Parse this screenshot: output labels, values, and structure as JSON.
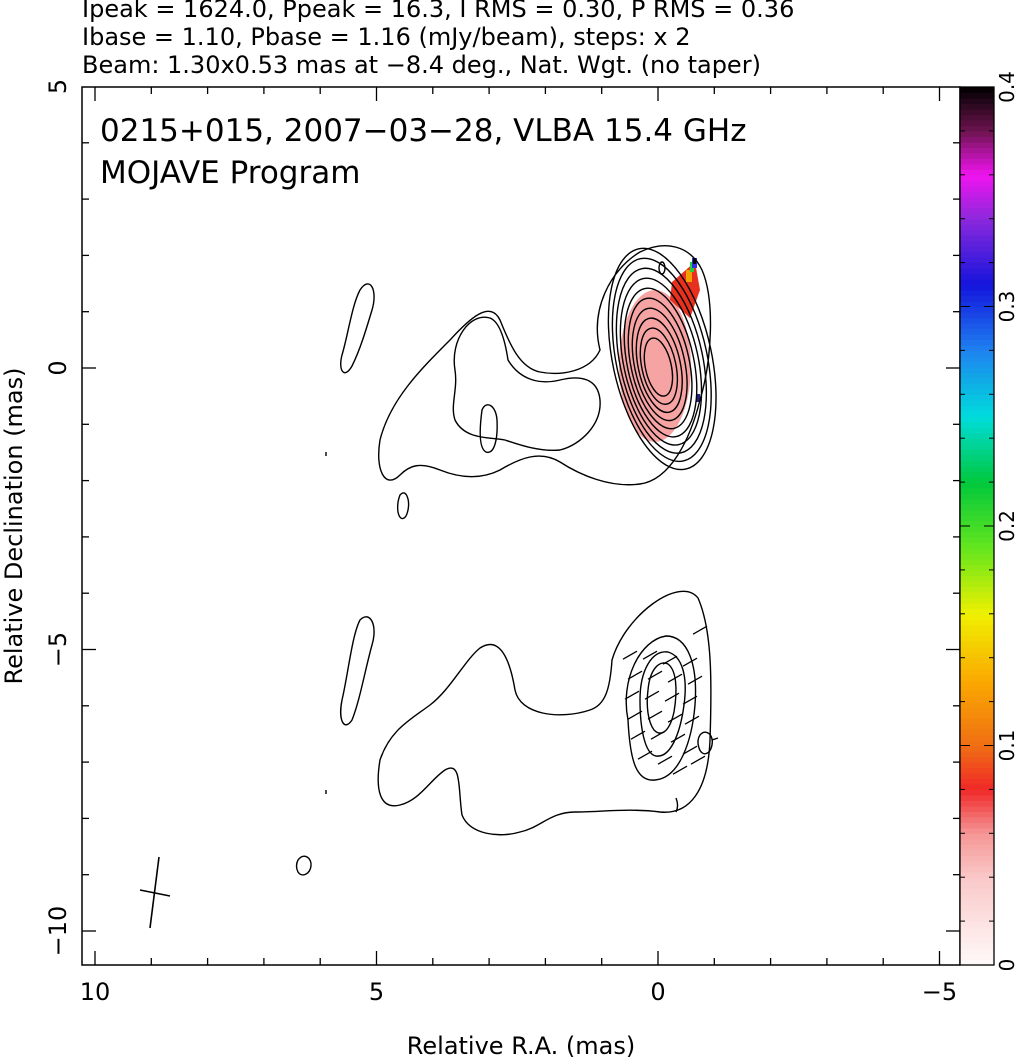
{
  "header": {
    "line1": "Ipeak = 1624.0, Ppeak = 16.3, I RMS = 0.30, P RMS = 0.36",
    "line2": "Ibase = 1.10, Pbase = 1.16 (mJy/beam), steps: x 2",
    "line3": "Beam: 1.30x0.53 mas at −8.4 deg., Nat. Wgt. (no taper)"
  },
  "chart_data": {
    "type": "heatmap",
    "title": "0215+015, 2007−03−28, VLBA 15.4 GHz",
    "subtitle": "MOJAVE Program",
    "xlabel": "Relative R.A. (mas)",
    "ylabel": "Relative Declination (mas)",
    "xlim": [
      10.2,
      -5.3
    ],
    "ylim": [
      -10.6,
      5
    ],
    "x_ticks": [
      {
        "value": 10,
        "label": "10"
      },
      {
        "value": 5,
        "label": "5"
      },
      {
        "value": 0,
        "label": "0"
      },
      {
        "value": -5,
        "label": "−5"
      }
    ],
    "y_ticks": [
      {
        "value": 5,
        "label": "5"
      },
      {
        "value": 0,
        "label": "0"
      },
      {
        "value": -5,
        "label": "−5"
      },
      {
        "value": -10,
        "label": "−10"
      }
    ],
    "colorbar": {
      "range": [
        0,
        0.4
      ],
      "ticks": [
        {
          "value": 0,
          "label": "0"
        },
        {
          "value": 0.1,
          "label": "0.1"
        },
        {
          "value": 0.2,
          "label": "0.2"
        },
        {
          "value": 0.3,
          "label": "0.3"
        },
        {
          "value": 0.4,
          "label": "0.4"
        }
      ]
    },
    "total_intensity_core": {
      "center": [
        0,
        0
      ],
      "semi_axes_mas": [
        0.88,
        2.0
      ],
      "contour_levels": 10
    },
    "polarized_core_offset_dec": -5.9,
    "beam": {
      "major_mas": 1.3,
      "minor_mas": 0.53,
      "pa_deg": -8.4,
      "center": [
        9.0,
        -9.3
      ]
    }
  },
  "colors": {
    "fractional_pol_low": "#f5a0a0",
    "contour": "#000000"
  }
}
